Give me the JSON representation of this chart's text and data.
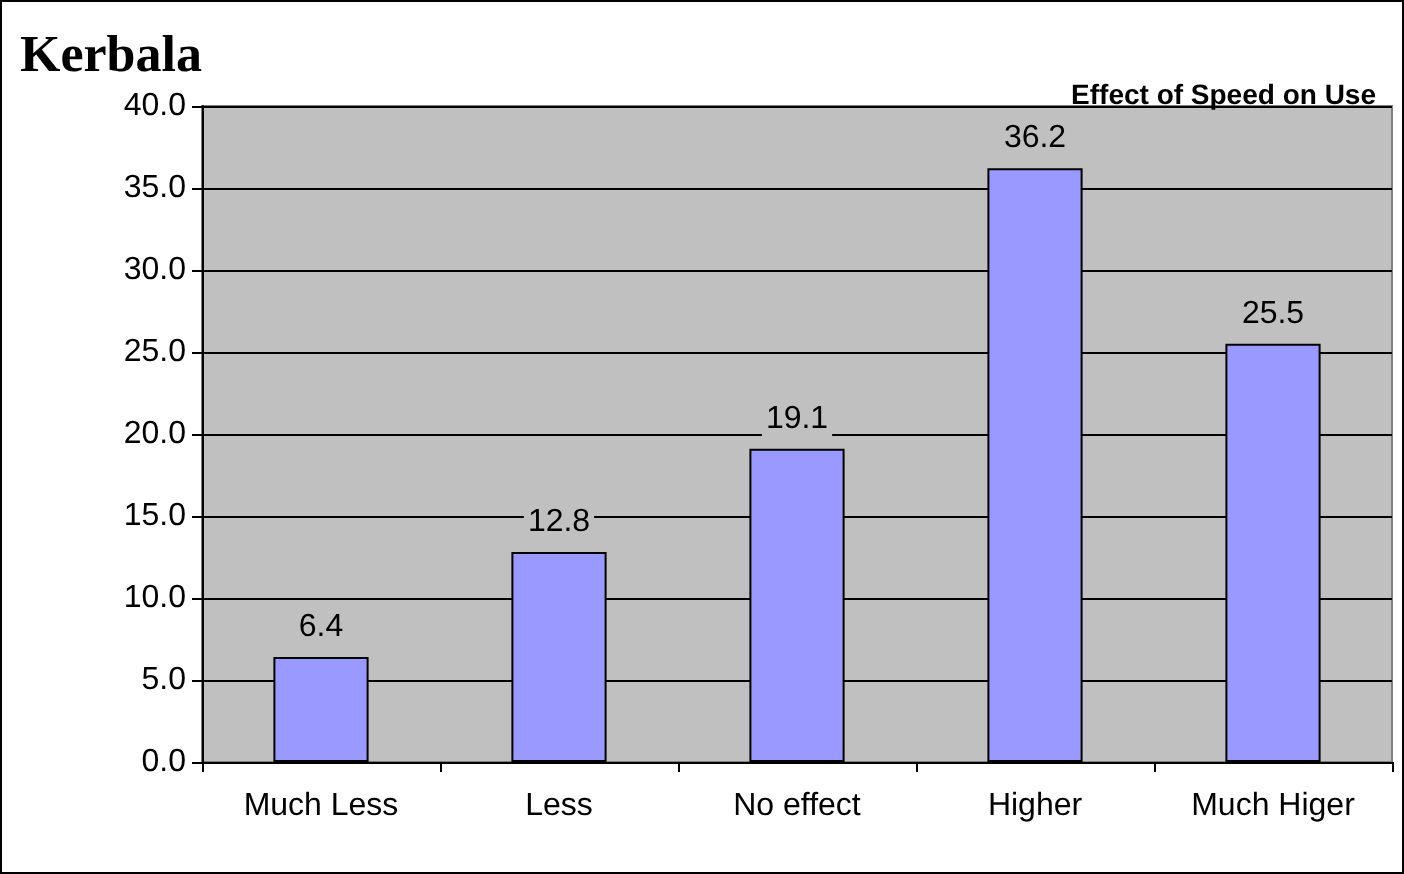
{
  "chart_data": {
    "type": "bar",
    "title": "Kerbala",
    "subtitle": "Effect of Speed on Use",
    "categories": [
      "Much Less",
      "Less",
      "No effect",
      "Higher",
      "Much Higer"
    ],
    "values": [
      6.4,
      12.8,
      19.1,
      36.2,
      25.5
    ],
    "color": "#9999ff",
    "ylim": [
      0,
      40
    ],
    "yticks": [
      {
        "value": 0,
        "label": "0.0"
      },
      {
        "value": 5,
        "label": "5.0"
      },
      {
        "value": 10,
        "label": "10.0"
      },
      {
        "value": 15,
        "label": "15.0"
      },
      {
        "value": 20,
        "label": "20.0"
      },
      {
        "value": 25,
        "label": "25.0"
      },
      {
        "value": 30,
        "label": "30.0"
      },
      {
        "value": 35,
        "label": "35.0"
      },
      {
        "value": 40,
        "label": "40.0"
      }
    ],
    "grid": "y",
    "data_labels": true
  }
}
